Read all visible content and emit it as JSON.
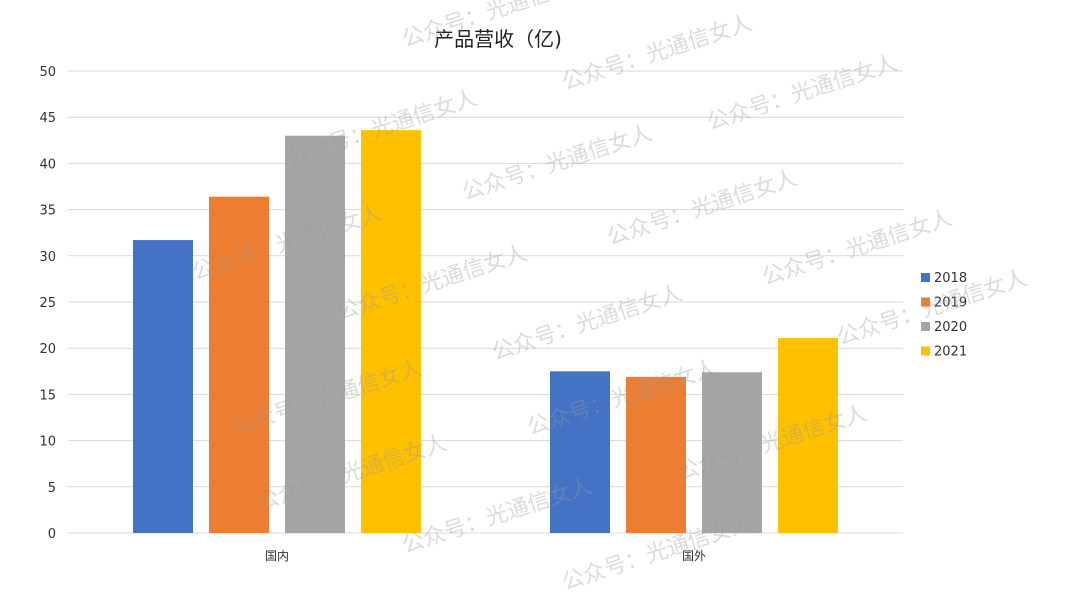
{
  "chart_data": {
    "type": "bar",
    "title": "产品营收（亿)",
    "categories": [
      "国内",
      "国外"
    ],
    "series": [
      {
        "name": "2018",
        "color": "#4472C4",
        "values": [
          31.7,
          17.5
        ]
      },
      {
        "name": "2019",
        "color": "#ED7D31",
        "values": [
          36.4,
          16.9
        ]
      },
      {
        "name": "2020",
        "color": "#A5A5A5",
        "values": [
          43.0,
          17.4
        ]
      },
      {
        "name": "2021",
        "color": "#FFC000",
        "values": [
          43.6,
          21.1
        ]
      }
    ],
    "yticks": [
      "0",
      "5",
      "10",
      "15",
      "20",
      "25",
      "30",
      "35",
      "40",
      "45",
      "50"
    ],
    "ylim": [
      0,
      50
    ],
    "grid": true,
    "legend_position": "right"
  },
  "watermark": "公众号：光通信女人"
}
